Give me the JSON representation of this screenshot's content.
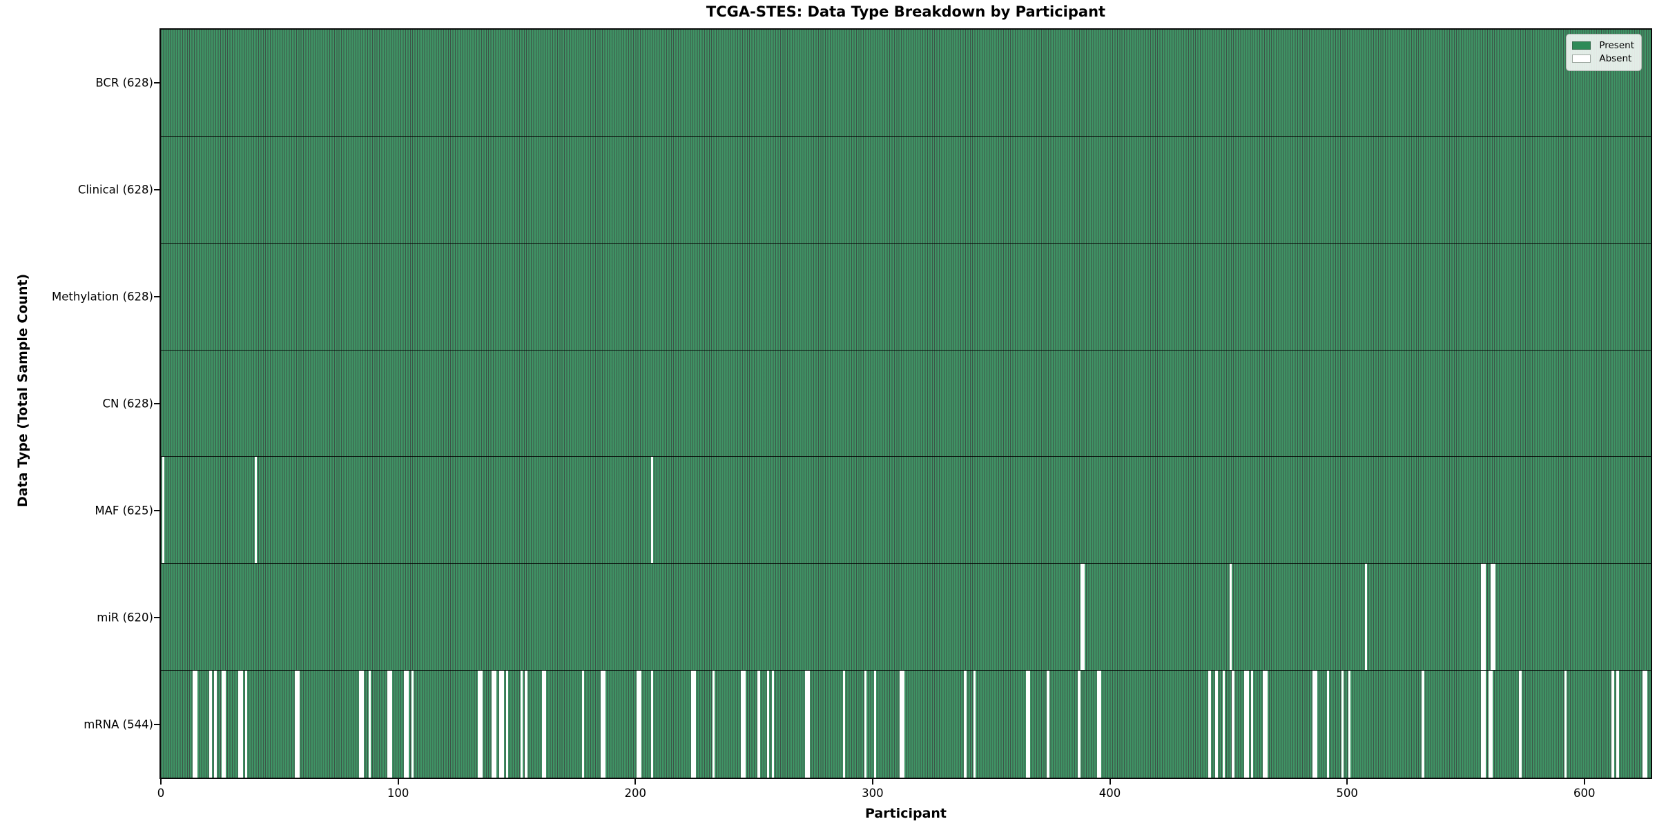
{
  "figure": {
    "title": "TCGA-STES: Data Type Breakdown by Participant",
    "xlabel": "Participant",
    "ylabel": "Data Type (Total Sample Count)"
  },
  "legend": {
    "present_label": "Present",
    "absent_label": "Absent"
  },
  "colors": {
    "present_fill": "#3f9465",
    "present_edge": "#0f2d1c",
    "present_swatch": "#2e8b57",
    "absent": "#ffffff",
    "legend_bg": "#f7faf7",
    "axis": "#0a0a0a"
  },
  "chart_data": {
    "type": "heatmap",
    "title": "TCGA-STES: Data Type Breakdown by Participant",
    "xlabel": "Participant",
    "ylabel": "Data Type (Total Sample Count)",
    "x_ticks": [
      0,
      100,
      200,
      300,
      400,
      500,
      600
    ],
    "n_participants": 628,
    "grid": false,
    "legend_position": "upper right",
    "legend_entries": [
      {
        "label": "Present",
        "color": "#2e8b57"
      },
      {
        "label": "Absent",
        "color": "#ffffff"
      }
    ],
    "rows": [
      {
        "label": "BCR (628)",
        "data_type": "BCR",
        "present_count": 628,
        "absent_count": 0,
        "absent_participants": []
      },
      {
        "label": "Clinical (628)",
        "data_type": "Clinical",
        "present_count": 628,
        "absent_count": 0,
        "absent_participants": []
      },
      {
        "label": "Methylation (628)",
        "data_type": "Methylation",
        "present_count": 628,
        "absent_count": 0,
        "absent_participants": []
      },
      {
        "label": "CN (628)",
        "data_type": "CN",
        "present_count": 628,
        "absent_count": 0,
        "absent_participants": []
      },
      {
        "label": "MAF (625)",
        "data_type": "MAF",
        "present_count": 625,
        "absent_count": 3,
        "absent_participants": [
          1,
          40,
          207
        ]
      },
      {
        "label": "miR (620)",
        "data_type": "miR",
        "present_count": 620,
        "absent_count": 8,
        "absent_participants": [
          388,
          389,
          451,
          508,
          557,
          558,
          561,
          562
        ]
      },
      {
        "label": "mRNA (544)",
        "data_type": "mRNA",
        "present_count": 544,
        "absent_count": 84,
        "absent_participants": [
          14,
          15,
          21,
          23,
          26,
          27,
          33,
          34,
          36,
          57,
          58,
          84,
          85,
          88,
          96,
          97,
          103,
          104,
          106,
          134,
          135,
          140,
          141,
          143,
          144,
          146,
          152,
          154,
          161,
          162,
          178,
          186,
          187,
          201,
          202,
          207,
          224,
          225,
          233,
          245,
          246,
          252,
          256,
          258,
          272,
          273,
          288,
          297,
          301,
          312,
          313,
          339,
          343,
          365,
          366,
          374,
          387,
          395,
          396,
          442,
          445,
          448,
          452,
          457,
          458,
          460,
          465,
          466,
          486,
          487,
          492,
          498,
          501,
          532,
          557,
          558,
          560,
          561,
          573,
          592,
          612,
          614,
          625,
          626
        ]
      }
    ]
  }
}
